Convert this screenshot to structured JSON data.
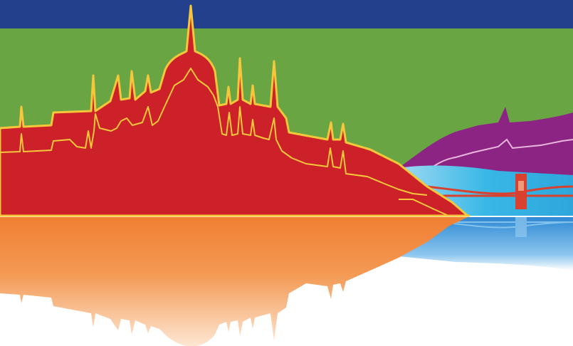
{
  "artwork": {
    "subject": "",
    "palette": {
      "top_band": "#22408c",
      "sky": "#6aa544",
      "parliament": "#cc2128",
      "outline": "#f6c73b",
      "hill": "#8c2484",
      "river": "#38b8e6",
      "bridge": "#d9402d",
      "reflection": "#f07f32",
      "river_reflection": "#2f89d3",
      "background": "#ffffff"
    }
  }
}
